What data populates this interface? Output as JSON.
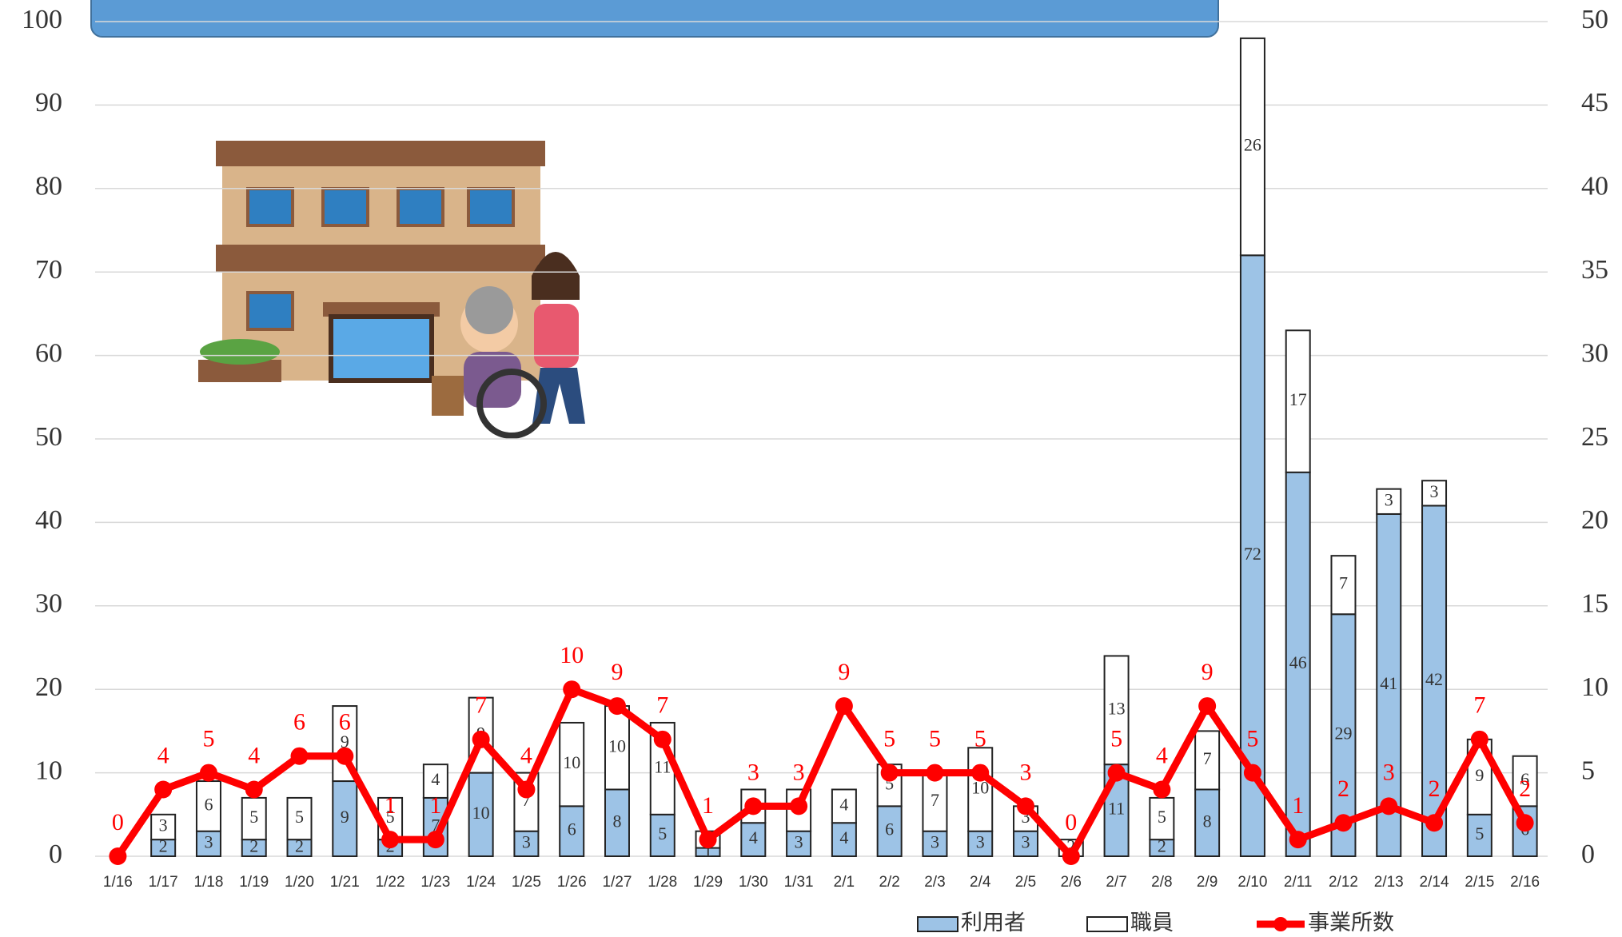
{
  "chart_data": {
    "type": "bar",
    "categories": [
      "1/16",
      "1/17",
      "1/18",
      "1/19",
      "1/20",
      "1/21",
      "1/22",
      "1/23",
      "1/24",
      "1/25",
      "1/26",
      "1/27",
      "1/28",
      "1/29",
      "1/30",
      "1/31",
      "2/1",
      "2/2",
      "2/3",
      "2/4",
      "2/5",
      "2/6",
      "2/7",
      "2/8",
      "2/9",
      "2/10",
      "2/11",
      "2/12",
      "2/13",
      "2/14",
      "2/15",
      "2/16"
    ],
    "series": [
      {
        "name": "利用者",
        "color": "#9dc3e6",
        "values": [
          0,
          2,
          3,
          2,
          2,
          9,
          2,
          7,
          10,
          3,
          6,
          8,
          5,
          1,
          4,
          3,
          4,
          6,
          3,
          3,
          3,
          0,
          11,
          2,
          8,
          72,
          46,
          29,
          41,
          42,
          5,
          6
        ]
      },
      {
        "name": "職員",
        "color": "#ffffff",
        "values": [
          0,
          3,
          6,
          5,
          5,
          9,
          5,
          4,
          9,
          7,
          10,
          10,
          11,
          2,
          4,
          5,
          4,
          5,
          7,
          10,
          3,
          2,
          13,
          5,
          7,
          26,
          17,
          7,
          3,
          3,
          9,
          6
        ]
      },
      {
        "name": "事業所数",
        "color": "#ff0000",
        "type": "line",
        "axis": "y2",
        "values": [
          0,
          4,
          5,
          4,
          6,
          6,
          1,
          1,
          7,
          4,
          10,
          9,
          7,
          1,
          3,
          3,
          9,
          5,
          5,
          5,
          3,
          0,
          5,
          4,
          9,
          5,
          1,
          2,
          3,
          2,
          7,
          2
        ]
      }
    ],
    "ylim": [
      0,
      100
    ],
    "yticks": [
      0,
      10,
      20,
      30,
      40,
      50,
      60,
      70,
      80,
      90,
      100
    ],
    "y2lim": [
      0,
      50
    ],
    "y2ticks": [
      0,
      5,
      10,
      15,
      20,
      25,
      30,
      35,
      40,
      45,
      50
    ],
    "grid": true,
    "legend": "bottom"
  }
}
